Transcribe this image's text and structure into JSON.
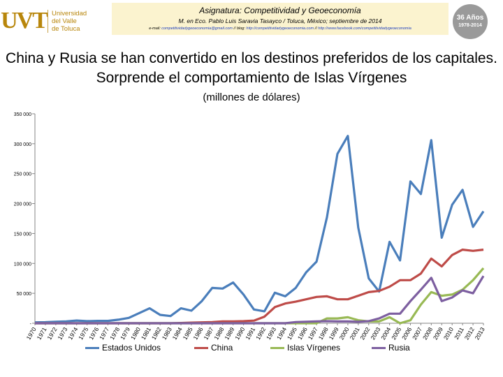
{
  "header": {
    "course_title": "Asignatura: Competitividad y Geoeconomía",
    "author_line": "M. en Eco. Pablo Luis Saravia Tasayco / Toluca, México; septiembre de 2014",
    "email_label": "e-mail:",
    "email": "competitividadygeoeconomia@gmail.com",
    "blog_label": "// blog:",
    "blog": "http://competitividadygeoeconomia.com",
    "fb_label": "//",
    "facebook": "http://www.facebook.com/competitividadygeoeconomia"
  },
  "logo": {
    "mark": "UVT",
    "line1": "Universidad",
    "line2": "del Valle",
    "line3": "de Toluca"
  },
  "seal": {
    "line1": "36 Años",
    "line2": "1978-2014"
  },
  "colors": {
    "estados_unidos": "#4a7ebb",
    "china": "#be4b48",
    "islas_virgenes": "#98b954",
    "rusia": "#7d5fa0"
  },
  "chart_data": {
    "type": "line",
    "title": "China y Rusia se han convertido en los destinos preferidos de los capitales. Sorprende el comportamiento de Islas Vírgenes",
    "subtitle": "(millones de dólares)",
    "xlabel": "",
    "ylabel": "",
    "ylim": [
      0,
      350000
    ],
    "yticks": [
      0,
      50000,
      100000,
      150000,
      200000,
      250000,
      300000,
      350000
    ],
    "ytick_labels": [
      "-",
      "50 000",
      "100 000",
      "150 000",
      "200 000",
      "250 000",
      "300 000",
      "350 000"
    ],
    "grid": "horizontal-off",
    "legend_position": "bottom",
    "x": [
      "1970",
      "1971",
      "1972",
      "1973",
      "1974",
      "1975",
      "1976",
      "1977",
      "1978",
      "1979",
      "1980",
      "1981",
      "1982",
      "1983",
      "1984",
      "1985",
      "1986",
      "1987",
      "1988",
      "1989",
      "1990",
      "1991",
      "1992",
      "1993",
      "1994",
      "1995",
      "1996",
      "1997",
      "1998",
      "1999",
      "2000",
      "2001",
      "2002",
      "2003",
      "2004",
      "2005",
      "2006",
      "2007",
      "2008",
      "2009",
      "2010",
      "2011",
      "2012",
      "2013"
    ],
    "series": [
      {
        "name": "Estados Unidos",
        "values": [
          1500,
          1800,
          2500,
          3000,
          4500,
          3500,
          4000,
          4000,
          6000,
          9000,
          17000,
          25000,
          14000,
          12000,
          25000,
          21000,
          37000,
          59000,
          58000,
          68000,
          48000,
          23000,
          20000,
          51000,
          45000,
          59000,
          85000,
          103000,
          177000,
          283000,
          313000,
          160000,
          75000,
          53000,
          136000,
          105000,
          237000,
          216000,
          306000,
          143000,
          198000,
          223000,
          161000,
          187000
        ]
      },
      {
        "name": "China",
        "values": [
          0,
          0,
          0,
          0,
          0,
          0,
          0,
          0,
          0,
          0,
          0,
          0,
          0,
          0,
          500,
          1000,
          1500,
          2000,
          3000,
          3200,
          3500,
          4400,
          11000,
          27000,
          33000,
          36000,
          40000,
          44000,
          45000,
          40000,
          40000,
          46000,
          52000,
          54000,
          61000,
          72000,
          72000,
          83000,
          108000,
          95000,
          114000,
          123000,
          121000,
          123000
        ]
      },
      {
        "name": "Islas Vírgenes",
        "values": [
          0,
          0,
          0,
          0,
          0,
          0,
          0,
          0,
          0,
          0,
          0,
          0,
          0,
          0,
          0,
          0,
          0,
          0,
          0,
          0,
          0,
          0,
          0,
          0,
          0,
          0,
          0,
          0,
          8000,
          8000,
          10000,
          5000,
          3000,
          3000,
          10000,
          0,
          5000,
          31000,
          52000,
          46000,
          48000,
          56000,
          72000,
          92000
        ]
      },
      {
        "name": "Rusia",
        "values": [
          0,
          0,
          0,
          0,
          0,
          0,
          0,
          0,
          0,
          0,
          0,
          0,
          0,
          0,
          0,
          0,
          0,
          0,
          0,
          0,
          0,
          0,
          0,
          0,
          0,
          2000,
          2500,
          3000,
          3500,
          3000,
          3000,
          2500,
          3500,
          8000,
          16000,
          16000,
          37000,
          56000,
          76000,
          37000,
          43000,
          55000,
          50000,
          79000
        ]
      }
    ]
  }
}
